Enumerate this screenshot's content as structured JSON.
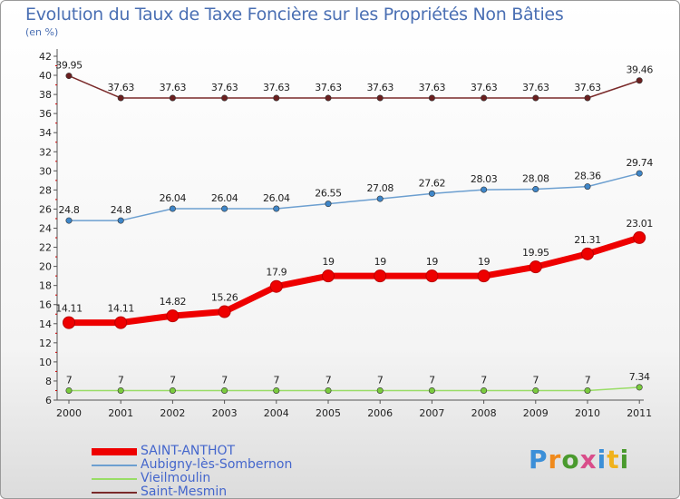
{
  "title": "Evolution du Taux de Taxe Foncière sur les Propriétés Non Bâties",
  "unit_label": "(en %)",
  "logo": {
    "text": "Proxiti",
    "letters": [
      "P",
      "r",
      "o",
      "x",
      "i",
      "t",
      "i"
    ],
    "colors": [
      "#3b8fd8",
      "#f08a1c",
      "#4a9a2e",
      "#d94d8a",
      "#3b8fd8",
      "#f0b21c",
      "#4a9a2e"
    ]
  },
  "chart_data": {
    "type": "line",
    "title": "Evolution du Taux de Taxe Foncière sur les Propriétés Non Bâties",
    "ylabel": "(en %)",
    "xlabel": "",
    "categories": [
      "2000",
      "2001",
      "2002",
      "2003",
      "2004",
      "2005",
      "2006",
      "2007",
      "2008",
      "2009",
      "2010",
      "2011"
    ],
    "ylim": [
      6,
      42
    ],
    "yticks": [
      "6",
      "8",
      "10",
      "12",
      "14",
      "16",
      "18",
      "20",
      "22",
      "24",
      "26",
      "28",
      "30",
      "32",
      "34",
      "36",
      "38",
      "40",
      "42"
    ],
    "grid": false,
    "series": [
      {
        "name": "SAINT-ANTHOT",
        "color": "#ee0000",
        "emphasis": true,
        "values": [
          14.11,
          14.11,
          14.82,
          15.26,
          17.9,
          19,
          19,
          19,
          19,
          19.95,
          21.31,
          23.01
        ],
        "labels": [
          "14.11",
          "14.11",
          "14.82",
          "15.26",
          "17.9",
          "19",
          "19",
          "19",
          "19",
          "19.95",
          "21.31",
          "23.01"
        ]
      },
      {
        "name": "Aubigny-lès-Sombernon",
        "color": "#6c9fd0",
        "marker": "#3f86c8",
        "values": [
          24.8,
          24.8,
          26.04,
          26.04,
          26.04,
          26.55,
          27.08,
          27.62,
          28.03,
          28.08,
          28.36,
          29.74
        ],
        "labels": [
          "24.8",
          "24.8",
          "26.04",
          "26.04",
          "26.04",
          "26.55",
          "27.08",
          "27.62",
          "28.03",
          "28.08",
          "28.36",
          "29.74"
        ]
      },
      {
        "name": "Vieilmoulin",
        "color": "#99dd66",
        "marker": "#7acb3e",
        "values": [
          7,
          7,
          7,
          7,
          7,
          7,
          7,
          7,
          7,
          7,
          7,
          7.34
        ],
        "labels": [
          "7",
          "7",
          "7",
          "7",
          "7",
          "7",
          "7",
          "7",
          "7",
          "7",
          "7",
          "7.34"
        ]
      },
      {
        "name": "Saint-Mesmin",
        "color": "#7a2a2a",
        "marker": "#6b1f1f",
        "values": [
          39.95,
          37.63,
          37.63,
          37.63,
          37.63,
          37.63,
          37.63,
          37.63,
          37.63,
          37.63,
          37.63,
          39.46
        ],
        "labels": [
          "39.95",
          "37.63",
          "37.63",
          "37.63",
          "37.63",
          "37.63",
          "37.63",
          "37.63",
          "37.63",
          "37.63",
          "37.63",
          "39.46"
        ]
      }
    ],
    "legend_position": "bottom-left"
  }
}
